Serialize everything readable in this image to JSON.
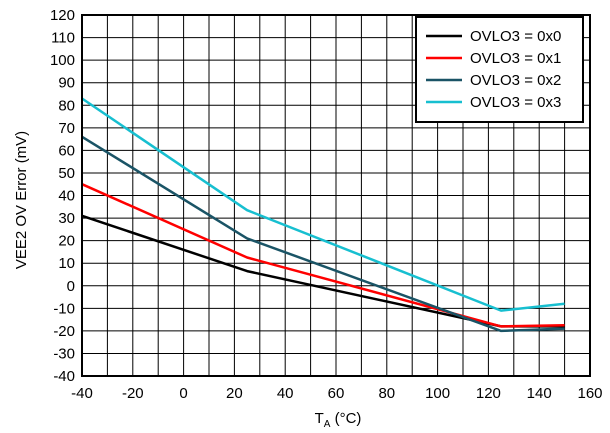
{
  "chart_data": {
    "type": "line",
    "title": "",
    "xlabel_main": "T",
    "xlabel_sub": "A",
    "xlabel_rest": " (°C)",
    "ylabel": "VEE2 OV Error (mV)",
    "xlim": [
      -40,
      160
    ],
    "ylim": [
      -40,
      120
    ],
    "xticks": [
      -40,
      -20,
      0,
      20,
      40,
      60,
      80,
      100,
      120,
      140,
      160
    ],
    "yticks": [
      -40,
      -30,
      -20,
      -10,
      0,
      10,
      20,
      30,
      40,
      50,
      60,
      70,
      80,
      90,
      100,
      110,
      120
    ],
    "x_minor_step": 10,
    "grid": true,
    "legend_position": "top-right",
    "series": [
      {
        "name": "OVLO3 = 0x0",
        "color": "#000000",
        "x": [
          -40,
          25,
          125,
          150
        ],
        "y": [
          31,
          6.5,
          -18,
          -18
        ]
      },
      {
        "name": "OVLO3 = 0x1",
        "color": "#ff0000",
        "x": [
          -40,
          25,
          125,
          150
        ],
        "y": [
          45,
          12.5,
          -18,
          -17.5
        ]
      },
      {
        "name": "OVLO3 = 0x2",
        "color": "#1a5466",
        "x": [
          -40,
          25,
          125,
          150
        ],
        "y": [
          66,
          21,
          -20,
          -19
        ]
      },
      {
        "name": "OVLO3 = 0x3",
        "color": "#17bfd0",
        "x": [
          -40,
          25,
          125,
          150
        ],
        "y": [
          83,
          33.5,
          -11,
          -8
        ]
      }
    ]
  }
}
